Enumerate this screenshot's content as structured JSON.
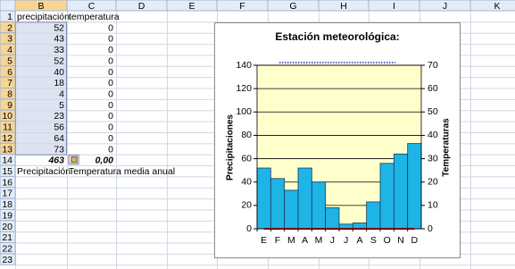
{
  "sheet": {
    "columns": [
      "B",
      "C",
      "D",
      "E",
      "F",
      "G",
      "H",
      "I",
      "J",
      "K"
    ],
    "rows": [
      1,
      2,
      3,
      4,
      5,
      6,
      7,
      8,
      9,
      10,
      11,
      12,
      13,
      14,
      15,
      16,
      17,
      18,
      19,
      20,
      21,
      22,
      23
    ],
    "totals": [
      "463",
      "0,00"
    ],
    "notes": [
      "Precipitación",
      "Temperatura media anual"
    ]
  },
  "chart_data": {
    "type": "bar",
    "title": "Estación meteorológica:",
    "categories": [
      "E",
      "F",
      "M",
      "A",
      "M",
      "J",
      "J",
      "A",
      "S",
      "O",
      "N",
      "D"
    ],
    "series": [
      {
        "name": "precipitación",
        "color": "#1eb4e6",
        "values": [
          52,
          43,
          33,
          52,
          40,
          18,
          4,
          5,
          23,
          56,
          64,
          73
        ]
      },
      {
        "name": "temperatura",
        "type": "line",
        "axis": "y2",
        "color": "#c00000",
        "values": [
          0,
          0,
          0,
          0,
          0,
          0,
          0,
          0,
          0,
          0,
          0,
          0
        ]
      }
    ],
    "ylabel": "Precipitaciones",
    "y2label": "Temperaturas",
    "ylim": [
      0,
      140
    ],
    "yticks": [
      0,
      20,
      40,
      60,
      80,
      100,
      120,
      140
    ],
    "y2lim": [
      0,
      70
    ],
    "y2ticks": [
      0,
      10,
      20,
      30,
      40,
      50,
      60,
      70
    ],
    "grid": true
  }
}
